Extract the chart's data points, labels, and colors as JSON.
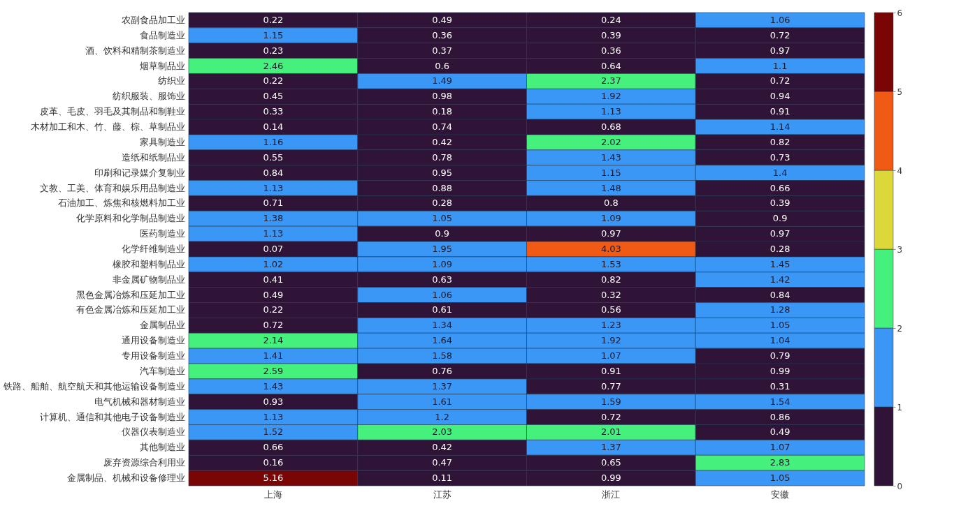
{
  "chart_data": {
    "type": "heatmap",
    "categories": [
      "上海",
      "江苏",
      "浙江",
      "安徽"
    ],
    "y_categories": [
      "农副食品加工业",
      "食品制造业",
      "酒、饮料和精制茶制造业",
      "烟草制品业",
      "纺织业",
      "纺织服装、服饰业",
      "皮革、毛皮、羽毛及其制品和制鞋业",
      "木材加工和木、竹、藤、棕、草制品业",
      "家具制造业",
      "造纸和纸制品业",
      "印刷和记录媒介复制业",
      "文教、工美、体育和娱乐用品制造业",
      "石油加工、炼焦和核燃料加工业",
      "化学原料和化学制品制造业",
      "医药制造业",
      "化学纤维制造业",
      "橡胶和塑料制品业",
      "非金属矿物制品业",
      "黑色金属冶炼和压延加工业",
      "有色金属冶炼和压延加工业",
      "金属制品业",
      "通用设备制造业",
      "专用设备制造业",
      "汽车制造业",
      "铁路、船舶、航空航天和其他运输设备制造业",
      "电气机械和器材制造业",
      "计算机、通信和其他电子设备制造业",
      "仪器仪表制造业",
      "其他制造业",
      "废弃资源综合利用业",
      "金属制品、机械和设备修理业"
    ],
    "cells": [
      [
        0.22,
        0.49,
        0.24,
        1.06
      ],
      [
        1.15,
        0.36,
        0.39,
        0.72
      ],
      [
        0.23,
        0.37,
        0.36,
        0.97
      ],
      [
        2.46,
        0.6,
        0.64,
        1.1
      ],
      [
        0.22,
        1.49,
        2.37,
        0.72
      ],
      [
        0.45,
        0.98,
        1.92,
        0.94
      ],
      [
        0.33,
        0.18,
        1.13,
        0.91
      ],
      [
        0.14,
        0.74,
        0.68,
        1.14
      ],
      [
        1.16,
        0.42,
        2.02,
        0.82
      ],
      [
        0.55,
        0.78,
        1.43,
        0.73
      ],
      [
        0.84,
        0.95,
        1.15,
        1.4
      ],
      [
        1.13,
        0.88,
        1.48,
        0.66
      ],
      [
        0.71,
        0.28,
        0.8,
        0.39
      ],
      [
        1.38,
        1.05,
        1.09,
        0.9
      ],
      [
        1.13,
        0.9,
        0.97,
        0.97
      ],
      [
        0.07,
        1.95,
        4.03,
        0.28
      ],
      [
        1.02,
        1.09,
        1.53,
        1.45
      ],
      [
        0.41,
        0.63,
        0.82,
        1.42
      ],
      [
        0.49,
        1.06,
        0.32,
        0.84
      ],
      [
        0.22,
        0.61,
        0.56,
        1.28
      ],
      [
        0.72,
        1.34,
        1.23,
        1.05
      ],
      [
        2.14,
        1.64,
        1.92,
        1.04
      ],
      [
        1.41,
        1.58,
        1.07,
        0.79
      ],
      [
        2.59,
        0.76,
        0.91,
        0.99
      ],
      [
        1.43,
        1.37,
        0.77,
        0.31
      ],
      [
        0.93,
        1.61,
        1.59,
        1.54
      ],
      [
        1.13,
        1.2,
        0.72,
        0.86
      ],
      [
        1.52,
        2.03,
        2.01,
        0.49
      ],
      [
        0.66,
        0.42,
        1.37,
        1.07
      ],
      [
        0.16,
        0.47,
        0.65,
        2.83
      ],
      [
        5.16,
        0.11,
        0.99,
        1.05
      ]
    ],
    "colors": [
      "#2f1438",
      "#3a97f5",
      "#45f07c",
      "#dcd83a",
      "#f05a14",
      "#7a0505"
    ],
    "clim": [
      0,
      6
    ],
    "cticks": [
      0,
      1,
      2,
      3,
      4,
      5,
      6
    ],
    "data_labels": true
  }
}
